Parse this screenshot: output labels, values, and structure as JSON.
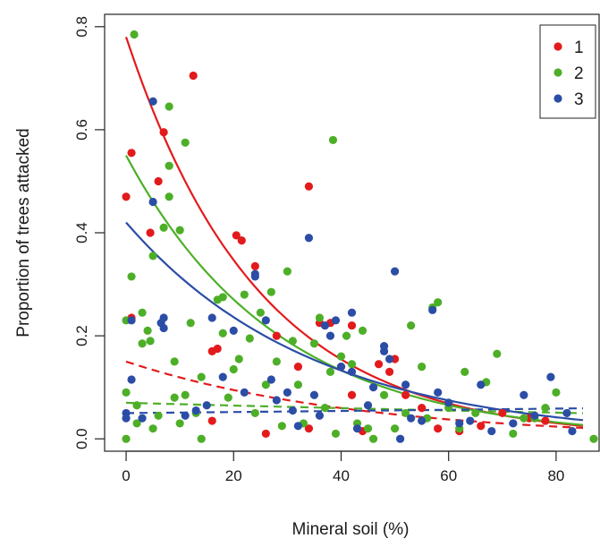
{
  "chart_data": {
    "type": "scatter",
    "title": "",
    "xlabel": "Mineral soil (%)",
    "ylabel": "Proportion of trees attacked",
    "xlim": [
      -4,
      88
    ],
    "ylim": [
      -0.024,
      0.824
    ],
    "xticks": [
      0,
      20,
      40,
      60,
      80
    ],
    "yticks": [
      0.0,
      0.2,
      0.4,
      0.6,
      0.8
    ],
    "xtick_labels": [
      "0",
      "20",
      "40",
      "60",
      "80"
    ],
    "ytick_labels": [
      "0.0",
      "0.2",
      "0.4",
      "0.6",
      "0.8"
    ],
    "grid": false,
    "legend_position": "top-right",
    "series": [
      {
        "name": "1",
        "color": "#e31a1c",
        "points": [
          [
            0,
            0.47
          ],
          [
            1,
            0.555
          ],
          [
            1,
            0.235
          ],
          [
            4.5,
            0.4
          ],
          [
            6,
            0.5
          ],
          [
            7,
            0.595
          ],
          [
            12.5,
            0.705
          ],
          [
            16,
            0.17
          ],
          [
            17,
            0.175
          ],
          [
            16,
            0.035
          ],
          [
            20.5,
            0.395
          ],
          [
            21.5,
            0.385
          ],
          [
            24,
            0.335
          ],
          [
            26,
            0.01
          ],
          [
            28,
            0.2
          ],
          [
            32,
            0.14
          ],
          [
            34,
            0.49
          ],
          [
            34,
            0.02
          ],
          [
            36,
            0.225
          ],
          [
            38,
            0.225
          ],
          [
            40,
            0.14
          ],
          [
            42,
            0.22
          ],
          [
            42,
            0.085
          ],
          [
            44,
            0.015
          ],
          [
            47,
            0.145
          ],
          [
            49,
            0.13
          ],
          [
            50,
            0.155
          ],
          [
            52,
            0.085
          ],
          [
            55,
            0.06
          ],
          [
            58,
            0.02
          ],
          [
            62,
            0.015
          ],
          [
            66,
            0.025
          ],
          [
            70,
            0.05
          ],
          [
            75,
            0.04
          ],
          [
            78,
            0.035
          ]
        ],
        "fit_solid": {
          "a": 0.78,
          "b": 0.0405
        },
        "fit_dashed": {
          "a": 0.15,
          "b": 0.023
        }
      },
      {
        "name": "2",
        "color": "#4daf27",
        "points": [
          [
            0,
            0.23
          ],
          [
            0,
            0.09
          ],
          [
            0,
            0
          ],
          [
            1,
            0.315
          ],
          [
            1.5,
            0.785
          ],
          [
            2,
            0.065
          ],
          [
            2,
            0.03
          ],
          [
            3,
            0.185
          ],
          [
            3,
            0.245
          ],
          [
            4,
            0.21
          ],
          [
            4.5,
            0.19
          ],
          [
            5,
            0.355
          ],
          [
            5,
            0.02
          ],
          [
            6,
            0.045
          ],
          [
            7,
            0.41
          ],
          [
            8,
            0.645
          ],
          [
            8,
            0.53
          ],
          [
            8,
            0.47
          ],
          [
            9,
            0.15
          ],
          [
            9,
            0.08
          ],
          [
            10,
            0.405
          ],
          [
            10,
            0.03
          ],
          [
            11,
            0.575
          ],
          [
            11,
            0.085
          ],
          [
            12,
            0.225
          ],
          [
            13,
            0.05
          ],
          [
            14,
            0.12
          ],
          [
            14,
            0
          ],
          [
            17,
            0.27
          ],
          [
            18,
            0.275
          ],
          [
            18,
            0.205
          ],
          [
            19,
            0.08
          ],
          [
            20,
            0.135
          ],
          [
            21,
            0.155
          ],
          [
            22,
            0.28
          ],
          [
            23,
            0.195
          ],
          [
            24,
            0.05
          ],
          [
            25,
            0.245
          ],
          [
            26,
            0.105
          ],
          [
            27,
            0.285
          ],
          [
            28,
            0.15
          ],
          [
            29,
            0.025
          ],
          [
            30,
            0.325
          ],
          [
            31,
            0.19
          ],
          [
            32,
            0.105
          ],
          [
            33,
            0.03
          ],
          [
            35,
            0.185
          ],
          [
            36,
            0.235
          ],
          [
            37,
            0.06
          ],
          [
            38,
            0.13
          ],
          [
            38.5,
            0.58
          ],
          [
            39,
            0.01
          ],
          [
            40,
            0.16
          ],
          [
            41,
            0.2
          ],
          [
            42,
            0.145
          ],
          [
            43,
            0.03
          ],
          [
            44,
            0.21
          ],
          [
            45,
            0.02
          ],
          [
            46,
            0
          ],
          [
            48,
            0.085
          ],
          [
            50,
            0.02
          ],
          [
            52,
            0.05
          ],
          [
            53,
            0.22
          ],
          [
            55,
            0.14
          ],
          [
            56,
            0.04
          ],
          [
            57,
            0.255
          ],
          [
            58,
            0.265
          ],
          [
            60,
            0.06
          ],
          [
            62,
            0.02
          ],
          [
            63,
            0.13
          ],
          [
            65,
            0.05
          ],
          [
            67,
            0.11
          ],
          [
            69,
            0.165
          ],
          [
            72,
            0.01
          ],
          [
            74,
            0.04
          ],
          [
            76,
            0.04
          ],
          [
            78,
            0.06
          ],
          [
            80,
            0.09
          ],
          [
            87,
            0
          ]
        ],
        "fit_solid": {
          "a": 0.55,
          "b": 0.0355
        },
        "fit_dashed": {
          "a": 0.07,
          "b": 0.004
        }
      },
      {
        "name": "3",
        "color": "#2b4da6",
        "points": [
          [
            0,
            0.05
          ],
          [
            0,
            0.04
          ],
          [
            1,
            0.23
          ],
          [
            1,
            0.115
          ],
          [
            3,
            0.04
          ],
          [
            5,
            0.655
          ],
          [
            5,
            0.46
          ],
          [
            6.5,
            0.225
          ],
          [
            7,
            0.235
          ],
          [
            7,
            0.215
          ],
          [
            11,
            0.045
          ],
          [
            13,
            0.055
          ],
          [
            15,
            0.065
          ],
          [
            16,
            0.235
          ],
          [
            18,
            0.12
          ],
          [
            20,
            0.21
          ],
          [
            22,
            0.09
          ],
          [
            24,
            0.32
          ],
          [
            24,
            0.315
          ],
          [
            26,
            0.23
          ],
          [
            27,
            0.115
          ],
          [
            28,
            0.075
          ],
          [
            30,
            0.09
          ],
          [
            31,
            0.055
          ],
          [
            32,
            0.025
          ],
          [
            34,
            0.39
          ],
          [
            35,
            0.085
          ],
          [
            36,
            0.045
          ],
          [
            37,
            0.22
          ],
          [
            38,
            0.2
          ],
          [
            39,
            0.23
          ],
          [
            40,
            0.14
          ],
          [
            42,
            0.245
          ],
          [
            42,
            0.13
          ],
          [
            43,
            0.02
          ],
          [
            45,
            0.065
          ],
          [
            46,
            0.1
          ],
          [
            48,
            0.17
          ],
          [
            48,
            0.18
          ],
          [
            49,
            0.155
          ],
          [
            50,
            0.325
          ],
          [
            51,
            0
          ],
          [
            52,
            0.105
          ],
          [
            53,
            0.04
          ],
          [
            55,
            0.035
          ],
          [
            57,
            0.25
          ],
          [
            58,
            0.09
          ],
          [
            60,
            0.07
          ],
          [
            62,
            0.03
          ],
          [
            64,
            0.035
          ],
          [
            66,
            0.105
          ],
          [
            68,
            0.015
          ],
          [
            72,
            0.03
          ],
          [
            74,
            0.085
          ],
          [
            76,
            0.045
          ],
          [
            79,
            0.12
          ],
          [
            82,
            0.05
          ],
          [
            83,
            0.015
          ]
        ],
        "fit_solid": {
          "a": 0.42,
          "b": 0.0288
        },
        "fit_dashed": {
          "a": 0.05,
          "b": -0.002
        }
      }
    ]
  }
}
